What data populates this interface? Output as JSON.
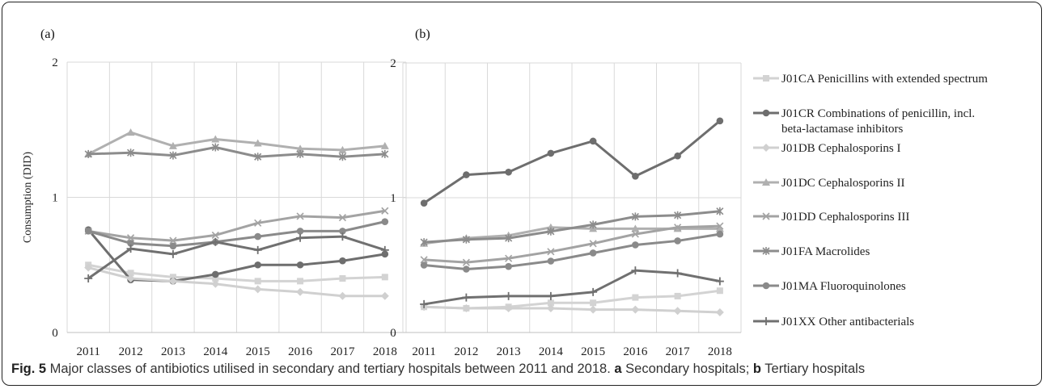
{
  "panels": [
    {
      "label": "(a)",
      "ylabel": "Consumption (DID)",
      "yticks": [
        "0",
        "1",
        "2"
      ],
      "ylim": [
        0,
        2
      ]
    },
    {
      "label": "(b)",
      "ylabel": "",
      "yticks": [
        "0",
        "1",
        "2"
      ],
      "ylim": [
        0,
        2
      ]
    }
  ],
  "caption": {
    "fig": "Fig. 5",
    "text1": " Major classes of antibiotics utilised in secondary and tertiary hospitals between 2011 and 2018. ",
    "a": "a",
    "text2": " Secondary hospitals; ",
    "b": "b",
    "text3": " Tertiary hospitals"
  },
  "chart_data": [
    {
      "type": "line",
      "panel": "(a)",
      "x": [
        "2011",
        "2012",
        "2013",
        "2014",
        "2015",
        "2016",
        "2017",
        "2018"
      ],
      "ylabel": "Consumption (DID)",
      "ylim": [
        0,
        2
      ],
      "grid": true,
      "series": [
        {
          "name": "J01CA Penicillins with extended spectrum",
          "values": [
            0.5,
            0.44,
            0.41,
            0.4,
            0.38,
            0.38,
            0.4,
            0.41
          ]
        },
        {
          "name": "J01CR Combinations of penicillin, incl. beta-lactamase inhibitors",
          "values": [
            0.76,
            0.39,
            0.38,
            0.43,
            0.5,
            0.5,
            0.53,
            0.58
          ]
        },
        {
          "name": "J01DB Cephalosporins I",
          "values": [
            0.48,
            0.4,
            0.38,
            0.36,
            0.32,
            0.3,
            0.27,
            0.27
          ]
        },
        {
          "name": "J01DC Cephalosporins II",
          "values": [
            1.32,
            1.48,
            1.38,
            1.43,
            1.4,
            1.36,
            1.35,
            1.38
          ]
        },
        {
          "name": "J01DD Cephalosporins III",
          "values": [
            0.75,
            0.7,
            0.68,
            0.72,
            0.81,
            0.86,
            0.85,
            0.9
          ]
        },
        {
          "name": "J01FA Macrolides",
          "values": [
            1.32,
            1.33,
            1.31,
            1.37,
            1.3,
            1.32,
            1.3,
            1.32
          ]
        },
        {
          "name": "J01MA Fluoroquinolones",
          "values": [
            0.75,
            0.66,
            0.64,
            0.67,
            0.71,
            0.75,
            0.75,
            0.82
          ]
        },
        {
          "name": "J01XX Other antibacterials",
          "values": [
            0.4,
            0.62,
            0.58,
            0.67,
            0.61,
            0.7,
            0.71,
            0.61
          ]
        }
      ]
    },
    {
      "type": "line",
      "panel": "(b)",
      "x": [
        "2011",
        "2012",
        "2013",
        "2014",
        "2015",
        "2016",
        "2017",
        "2018"
      ],
      "ylabel": "",
      "ylim": [
        0,
        2
      ],
      "grid": true,
      "legend": "right",
      "series": [
        {
          "name": "J01CA Penicillins with extended spectrum",
          "values": [
            0.19,
            0.18,
            0.19,
            0.22,
            0.22,
            0.26,
            0.27,
            0.31
          ]
        },
        {
          "name": "J01CR Combinations of penicillin, incl. beta-lactamase inhibitors",
          "values": [
            0.96,
            1.17,
            1.19,
            1.33,
            1.42,
            1.16,
            1.31,
            1.57
          ]
        },
        {
          "name": "J01DB Cephalosporins I",
          "values": [
            0.19,
            0.18,
            0.18,
            0.18,
            0.17,
            0.17,
            0.16,
            0.15
          ]
        },
        {
          "name": "J01DC Cephalosporins II",
          "values": [
            0.66,
            0.7,
            0.72,
            0.78,
            0.77,
            0.77,
            0.77,
            0.77
          ]
        },
        {
          "name": "J01DD Cephalosporins III",
          "values": [
            0.54,
            0.52,
            0.55,
            0.6,
            0.66,
            0.73,
            0.78,
            0.79
          ]
        },
        {
          "name": "J01FA Macrolides",
          "values": [
            0.67,
            0.69,
            0.7,
            0.75,
            0.8,
            0.86,
            0.87,
            0.9
          ]
        },
        {
          "name": "J01MA Fluoroquinolones",
          "values": [
            0.5,
            0.47,
            0.49,
            0.53,
            0.59,
            0.65,
            0.68,
            0.73
          ]
        },
        {
          "name": "J01XX Other antibacterials",
          "values": [
            0.21,
            0.26,
            0.27,
            0.27,
            0.3,
            0.46,
            0.44,
            0.38
          ]
        }
      ]
    }
  ],
  "series_styles": [
    {
      "color": "#d3d3d3",
      "marker": "square"
    },
    {
      "color": "#6e6e6e",
      "marker": "circle"
    },
    {
      "color": "#d0d0d0",
      "marker": "diamond"
    },
    {
      "color": "#b0b0b0",
      "marker": "triangle"
    },
    {
      "color": "#a3a3a3",
      "marker": "x"
    },
    {
      "color": "#8c8c8c",
      "marker": "star"
    },
    {
      "color": "#8a8a8a",
      "marker": "circle"
    },
    {
      "color": "#707070",
      "marker": "plus"
    }
  ]
}
